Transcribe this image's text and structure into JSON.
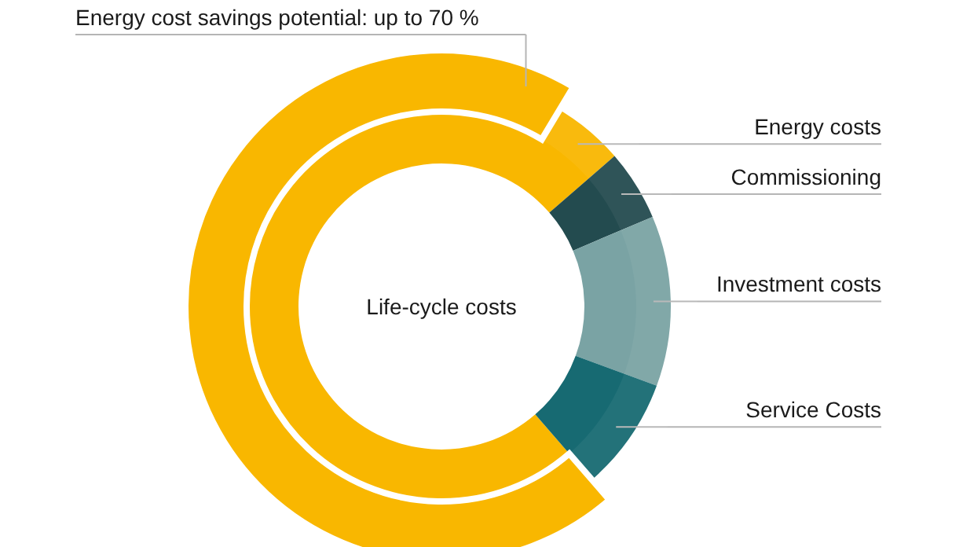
{
  "chart_data": [
    {
      "type": "donut",
      "title": "Life-cycle costs",
      "categories": [
        "Energy costs",
        "Commissioning",
        "Investment costs",
        "Service Costs"
      ],
      "values": [
        75,
        5,
        12,
        8
      ],
      "colors": [
        "#f9b700",
        "#234b4f",
        "#7aa3a4",
        "#176a72"
      ]
    },
    {
      "type": "donut",
      "categories": [
        "Energy cost savings potential: up to 70 %",
        null
      ],
      "values": [
        70,
        30
      ],
      "colors": [
        "#f9b700",
        "#ffffff"
      ]
    }
  ]
}
